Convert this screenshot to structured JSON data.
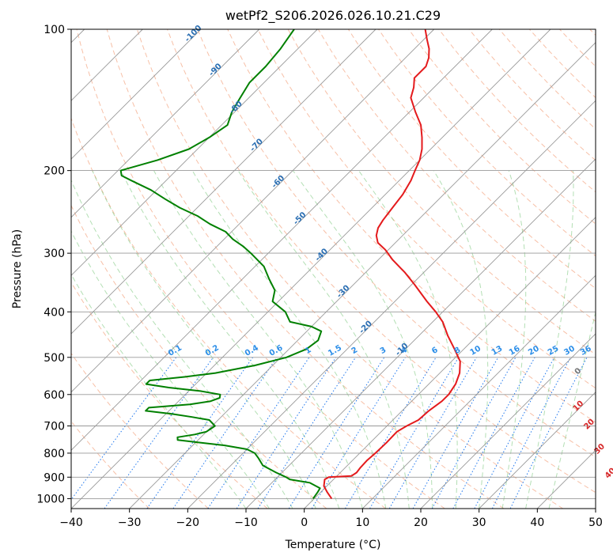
{
  "chart_data": {
    "type": "line",
    "title": "wetPf2_S206.2026.026.10.21.C29",
    "xlabel": "Temperature (°C)",
    "ylabel": "Pressure (hPa)",
    "xlim": [
      -40,
      50
    ],
    "ylim": [
      1050,
      100
    ],
    "y_scale": "log",
    "x_ticks": [
      -40,
      -30,
      -20,
      -10,
      0,
      10,
      20,
      30,
      40,
      50
    ],
    "x_tick_labels": [
      "−40",
      "−30",
      "−20",
      "−10",
      "0",
      "10",
      "20",
      "30",
      "40",
      "50"
    ],
    "y_ticks": [
      100,
      200,
      300,
      400,
      500,
      600,
      700,
      800,
      900,
      1000
    ],
    "y_tick_labels": [
      "100",
      "200",
      "300",
      "400",
      "500",
      "600",
      "700",
      "800",
      "900",
      "1000"
    ],
    "grid": true,
    "skew": 45,
    "series": [
      {
        "color": "#e41a1c",
        "p": [
          1000,
          970,
          940,
          910,
          900,
          895,
          880,
          860,
          830,
          800,
          760,
          720,
          700,
          680,
          650,
          620,
          600,
          570,
          540,
          510,
          480,
          450,
          420,
          400,
          380,
          350,
          330,
          310,
          295,
          285,
          275,
          265,
          255,
          240,
          225,
          210,
          200,
          190,
          180,
          170,
          160,
          150,
          140,
          133,
          127,
          120,
          115,
          110,
          105,
          100
        ],
        "t": [
          3.0,
          1.2,
          -0.5,
          -1.5,
          -1.2,
          2.5,
          2.8,
          2.6,
          2.5,
          2.7,
          2.8,
          2.7,
          3.4,
          4.4,
          4.6,
          5.2,
          5.2,
          4.6,
          3.4,
          1.5,
          -1.6,
          -5.0,
          -8.3,
          -11.2,
          -14.5,
          -19.5,
          -23.2,
          -27.5,
          -30.5,
          -33.0,
          -34.5,
          -35.5,
          -36.0,
          -36.5,
          -37.0,
          -38.0,
          -39.0,
          -40.0,
          -41.5,
          -43.5,
          -45.8,
          -49.0,
          -52.2,
          -53.5,
          -55.0,
          -55.0,
          -56.0,
          -57.5,
          -59.5,
          -61.5
        ]
      },
      {
        "color": "#008000",
        "p": [
          1000,
          970,
          950,
          925,
          910,
          900,
          880,
          850,
          820,
          800,
          785,
          770,
          760,
          750,
          740,
          730,
          720,
          700,
          680,
          670,
          660,
          650,
          640,
          630,
          620,
          610,
          600,
          590,
          580,
          570,
          560,
          550,
          540,
          520,
          500,
          480,
          460,
          440,
          430,
          420,
          400,
          380,
          360,
          340,
          320,
          300,
          290,
          280,
          270,
          260,
          250,
          240,
          230,
          220,
          210,
          205,
          200,
          190,
          180,
          170,
          160,
          150,
          140,
          130,
          120,
          110,
          100
        ],
        "t": [
          -0.2,
          -0.5,
          -0.8,
          -3.5,
          -7.5,
          -8.5,
          -11.0,
          -14.5,
          -16.5,
          -18.0,
          -20.0,
          -24.5,
          -29.0,
          -33.5,
          -34.0,
          -31.5,
          -30.0,
          -29.5,
          -31.5,
          -35.0,
          -39.0,
          -44.0,
          -44.0,
          -37.5,
          -34.5,
          -33.5,
          -34.0,
          -38.0,
          -44.0,
          -48.5,
          -48.5,
          -43.0,
          -38.5,
          -33.0,
          -29.0,
          -27.0,
          -26.5,
          -27.5,
          -30.0,
          -34.5,
          -37.0,
          -41.0,
          -42.5,
          -45.5,
          -48.5,
          -53.0,
          -55.5,
          -58.5,
          -61.0,
          -65.0,
          -68.5,
          -73.0,
          -77.0,
          -81.0,
          -86.0,
          -88.5,
          -89.5,
          -85.0,
          -81.5,
          -80.0,
          -79.0,
          -80.5,
          -81.5,
          -82.5,
          -82.5,
          -83.0,
          -84.0
        ]
      }
    ],
    "isotherm_labels": [
      {
        "t": -100,
        "p": 103,
        "text": "-100"
      },
      {
        "t": -90,
        "p": 123,
        "text": "-90"
      },
      {
        "t": -80,
        "p": 148,
        "text": "-80"
      },
      {
        "t": -70,
        "p": 178,
        "text": "-70"
      },
      {
        "t": -60,
        "p": 213,
        "text": "-60"
      },
      {
        "t": -50,
        "p": 255,
        "text": "-50"
      },
      {
        "t": -40,
        "p": 305,
        "text": "-40"
      },
      {
        "t": -30,
        "p": 365,
        "text": "-30"
      },
      {
        "t": -20,
        "p": 435,
        "text": "-20"
      },
      {
        "t": -10,
        "p": 485,
        "text": "-10"
      }
    ],
    "mixing_ratio_labels": [
      "0.1",
      "0.2",
      "0.4",
      "0.6",
      "1",
      "1.5",
      "2",
      "3",
      "4",
      "6",
      "8",
      "10",
      "13",
      "16",
      "20",
      "25",
      "30",
      "36"
    ],
    "moist_adiabat_labels": [
      {
        "t": 24,
        "p": 540,
        "text": "0",
        "color": "#777777"
      },
      {
        "t": 30,
        "p": 640,
        "text": "10",
        "color": "#d62728"
      },
      {
        "t": 35,
        "p": 700,
        "text": "20",
        "color": "#d62728"
      },
      {
        "t": 41,
        "p": 790,
        "text": "30",
        "color": "#d62728"
      },
      {
        "t": 47,
        "p": 890,
        "text": "40",
        "color": "#d62728"
      }
    ]
  }
}
